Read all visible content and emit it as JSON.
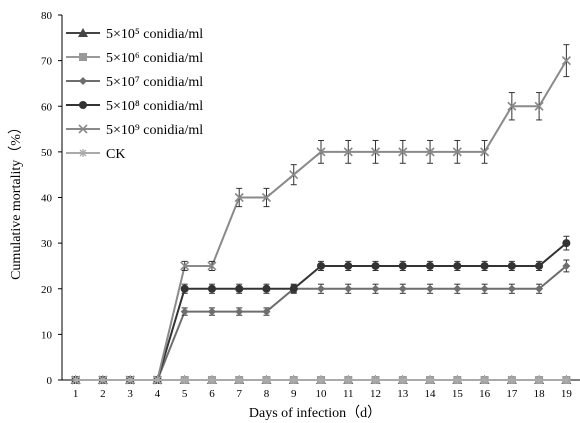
{
  "chart_data": {
    "type": "line",
    "xlabel": "Days of infection（d）",
    "ylabel": "Cumulative mortality（%）",
    "x": [
      1,
      2,
      3,
      4,
      5,
      6,
      7,
      8,
      9,
      10,
      11,
      12,
      13,
      14,
      15,
      16,
      17,
      18,
      19
    ],
    "xlim": [
      0.5,
      19.5
    ],
    "ylim": [
      0,
      80
    ],
    "yticks": [
      0,
      10,
      20,
      30,
      40,
      50,
      60,
      70,
      80
    ],
    "grid": false,
    "legend_position": "top-left",
    "series": [
      {
        "name": "5×10⁵ conidia/ml",
        "marker": "triangle",
        "color": "#444444",
        "values": [
          0,
          0,
          0,
          0,
          0,
          0,
          0,
          0,
          0,
          0,
          0,
          0,
          0,
          0,
          0,
          0,
          0,
          0,
          0
        ],
        "errors": [
          0,
          0,
          0,
          0,
          0,
          0,
          0,
          0,
          0,
          0,
          0,
          0,
          0,
          0,
          0,
          0,
          0,
          0,
          0
        ]
      },
      {
        "name": "5×10⁶ conidia/ml",
        "marker": "square",
        "color": "#999999",
        "values": [
          0,
          0,
          0,
          0,
          0,
          0,
          0,
          0,
          0,
          0,
          0,
          0,
          0,
          0,
          0,
          0,
          0,
          0,
          0
        ],
        "errors": [
          0,
          0,
          0,
          0,
          0,
          0,
          0,
          0,
          0,
          0,
          0,
          0,
          0,
          0,
          0,
          0,
          0,
          0,
          0
        ]
      },
      {
        "name": "5×10⁷ conidia/ml",
        "marker": "diamond",
        "color": "#6e6e6e",
        "values": [
          0,
          0,
          0,
          0,
          15,
          15,
          15,
          15,
          20,
          20,
          20,
          20,
          20,
          20,
          20,
          20,
          20,
          20,
          25
        ],
        "errors": [
          0,
          0,
          0,
          0,
          0.8,
          0.8,
          0.8,
          0.8,
          0.8,
          1,
          1,
          1,
          1,
          1,
          1,
          1,
          1,
          1,
          1.3
        ]
      },
      {
        "name": "5×10⁸ conidia/ml",
        "marker": "circle",
        "color": "#333333",
        "values": [
          0,
          0,
          0,
          0,
          20,
          20,
          20,
          20,
          20,
          25,
          25,
          25,
          25,
          25,
          25,
          25,
          25,
          25,
          30
        ],
        "errors": [
          0,
          0,
          0,
          0,
          1,
          1,
          1,
          1,
          1,
          1,
          1,
          1,
          1,
          1,
          1,
          1,
          1,
          1,
          1.5
        ]
      },
      {
        "name": "5×10⁹ conidia/ml",
        "marker": "x",
        "color": "#8a8a8a",
        "values": [
          0,
          0,
          0,
          0,
          25,
          25,
          40,
          40,
          45,
          50,
          50,
          50,
          50,
          50,
          50,
          50,
          60,
          60,
          70
        ],
        "errors": [
          0,
          0,
          0,
          0,
          1,
          1,
          2,
          2,
          2.2,
          2.5,
          2.5,
          2.5,
          2.5,
          2.5,
          2.5,
          2.5,
          3,
          3,
          3.5
        ]
      },
      {
        "name": "CK",
        "marker": "star",
        "color": "#aaaaaa",
        "values": [
          0,
          0,
          0,
          0,
          0,
          0,
          0,
          0,
          0,
          0,
          0,
          0,
          0,
          0,
          0,
          0,
          0,
          0,
          0
        ],
        "errors": [
          0,
          0,
          0,
          0,
          0,
          0,
          0,
          0,
          0,
          0,
          0,
          0,
          0,
          0,
          0,
          0,
          0,
          0,
          0
        ]
      }
    ]
  }
}
